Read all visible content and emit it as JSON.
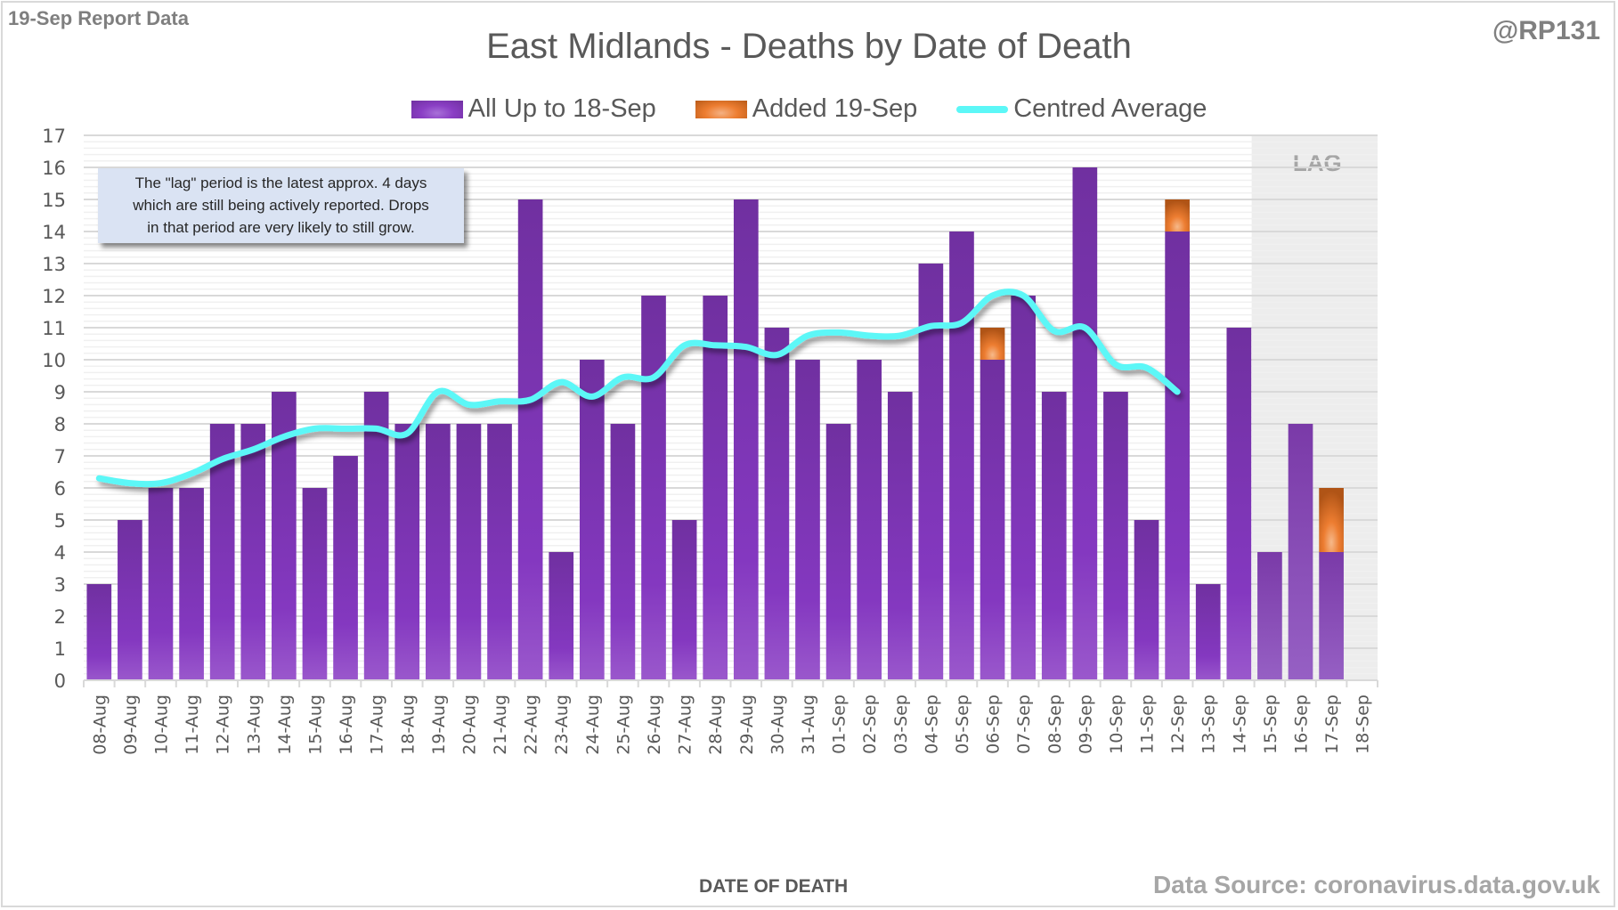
{
  "header": {
    "report_tag": "19-Sep Report Data",
    "handle": "@RP131"
  },
  "note": {
    "lines": [
      "The \"lag\" period is the latest approx. 4 days",
      "which are still being actively reported.  Drops",
      "in that period are very likely to still grow."
    ]
  },
  "footer": {
    "source": "Data Source: coronavirus.data.gov.uk"
  },
  "colors": {
    "base_bar": "#7030a0",
    "added_bar": "#ed7d31",
    "average_line": "#5cf7f7",
    "lag_shade": "#ededed"
  },
  "chart_data": {
    "type": "bar",
    "title": "East Midlands - Deaths by Date of Death",
    "xlabel": "DATE OF DEATH",
    "ylabel": "",
    "ylim": [
      0,
      17
    ],
    "yticks": [
      0,
      1,
      2,
      3,
      4,
      5,
      6,
      7,
      8,
      9,
      10,
      11,
      12,
      13,
      14,
      15,
      16,
      17
    ],
    "grid": true,
    "legend_position": "top-center",
    "stacked": true,
    "categories": [
      "08-Aug",
      "09-Aug",
      "10-Aug",
      "11-Aug",
      "12-Aug",
      "13-Aug",
      "14-Aug",
      "15-Aug",
      "16-Aug",
      "17-Aug",
      "18-Aug",
      "19-Aug",
      "20-Aug",
      "21-Aug",
      "22-Aug",
      "23-Aug",
      "24-Aug",
      "25-Aug",
      "26-Aug",
      "27-Aug",
      "28-Aug",
      "29-Aug",
      "30-Aug",
      "31-Aug",
      "01-Sep",
      "02-Sep",
      "03-Sep",
      "04-Sep",
      "05-Sep",
      "06-Sep",
      "07-Sep",
      "08-Sep",
      "09-Sep",
      "10-Sep",
      "11-Sep",
      "12-Sep",
      "13-Sep",
      "14-Sep",
      "15-Sep",
      "16-Sep",
      "17-Sep",
      "18-Sep"
    ],
    "series": [
      {
        "name": "All Up to 18-Sep",
        "type": "bar",
        "values": [
          3,
          5,
          6,
          6,
          8,
          8,
          9,
          6,
          7,
          9,
          8,
          8,
          8,
          8,
          15,
          4,
          10,
          8,
          12,
          5,
          12,
          15,
          11,
          10,
          8,
          10,
          9,
          13,
          14,
          10,
          12,
          9,
          16,
          9,
          5,
          14,
          3,
          11,
          4,
          8,
          4,
          0
        ]
      },
      {
        "name": "Added 19-Sep",
        "type": "bar",
        "values": [
          0,
          0,
          0,
          0,
          0,
          0,
          0,
          0,
          0,
          0,
          0,
          0,
          0,
          0,
          0,
          0,
          0,
          0,
          0,
          0,
          0,
          0,
          0,
          0,
          0,
          0,
          0,
          0,
          0,
          1,
          0,
          0,
          0,
          0,
          0,
          1,
          0,
          0,
          0,
          0,
          2,
          0
        ]
      },
      {
        "name": "Centred Average",
        "type": "line",
        "values": [
          6.3,
          6.15,
          6.15,
          6.45,
          6.9,
          7.2,
          7.6,
          7.85,
          7.85,
          7.85,
          7.7,
          9.0,
          8.6,
          8.7,
          8.75,
          9.3,
          8.85,
          9.45,
          9.45,
          10.45,
          10.45,
          10.4,
          10.15,
          10.75,
          10.85,
          10.75,
          10.75,
          11.05,
          11.15,
          12.0,
          12.0,
          10.9,
          11.0,
          9.85,
          9.75,
          9.0,
          null,
          null,
          null,
          null,
          null,
          null
        ]
      }
    ],
    "annotations": [
      {
        "type": "shaded-region",
        "label": "LAG",
        "from": "15-Sep",
        "to": "18-Sep"
      }
    ]
  }
}
